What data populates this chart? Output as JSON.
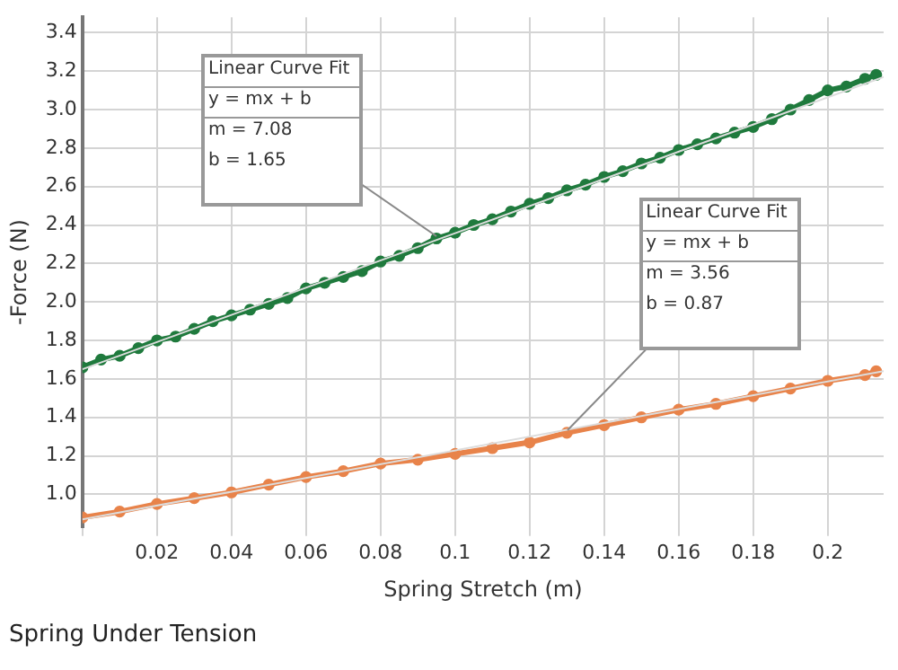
{
  "chart_data": {
    "type": "line",
    "title": "Spring Under Tension",
    "xlabel": "Spring Stretch (m)",
    "ylabel": "-Force (N)",
    "xlim": [
      0,
      0.215
    ],
    "xticks": [
      {
        "value": 0,
        "label": null
      },
      0.02,
      0.04,
      0.06,
      0.08,
      0.1,
      0.12,
      0.14,
      0.16,
      0.18,
      0.2
    ],
    "ylim": [
      0.83,
      3.48
    ],
    "yticks": [
      {
        "value": 1,
        "label": "1.0"
      },
      1.2,
      1.4,
      1.6,
      1.8,
      {
        "value": 2,
        "label": "2.0"
      },
      2.2,
      2.4,
      2.6,
      2.8,
      {
        "value": 3,
        "label": "3.0"
      },
      3.2,
      3.4
    ],
    "grid": true,
    "legend": false,
    "marker": "circle",
    "series": [
      {
        "color": "#1f7a3d",
        "x": [
          0,
          0.005,
          0.01,
          0.015,
          0.02,
          0.025,
          0.03,
          0.035,
          0.04,
          0.045,
          0.05,
          0.055,
          0.06,
          0.065,
          0.07,
          0.075,
          0.08,
          0.085,
          0.09,
          0.095,
          0.1,
          0.105,
          0.11,
          0.115,
          0.12,
          0.125,
          0.13,
          0.135,
          0.14,
          0.145,
          0.15,
          0.155,
          0.16,
          0.165,
          0.17,
          0.175,
          0.18,
          0.185,
          0.19,
          0.195,
          0.2,
          0.205,
          0.21,
          0.213
        ],
        "values": [
          1.66,
          1.7,
          1.72,
          1.76,
          1.8,
          1.82,
          1.86,
          1.9,
          1.93,
          1.96,
          1.99,
          2.02,
          2.07,
          2.1,
          2.13,
          2.16,
          2.21,
          2.24,
          2.28,
          2.33,
          2.36,
          2.4,
          2.43,
          2.47,
          2.51,
          2.54,
          2.58,
          2.61,
          2.65,
          2.68,
          2.72,
          2.75,
          2.79,
          2.82,
          2.85,
          2.88,
          2.91,
          2.95,
          3.0,
          3.05,
          3.1,
          3.12,
          3.16,
          3.18
        ]
      },
      {
        "color": "#e8834a",
        "x": [
          0,
          0.01,
          0.02,
          0.03,
          0.04,
          0.05,
          0.06,
          0.07,
          0.08,
          0.09,
          0.1,
          0.11,
          0.12,
          0.13,
          0.14,
          0.15,
          0.16,
          0.17,
          0.18,
          0.19,
          0.2,
          0.21,
          0.213
        ],
        "values": [
          0.88,
          0.91,
          0.95,
          0.98,
          1.01,
          1.05,
          1.09,
          1.12,
          1.16,
          1.18,
          1.21,
          1.24,
          1.27,
          1.32,
          1.36,
          1.4,
          1.44,
          1.47,
          1.51,
          1.55,
          1.59,
          1.62,
          1.64
        ]
      },
      {
        "type": "line",
        "marker": "none",
        "color": "#dcdcdc",
        "x": [
          0,
          0.215
        ],
        "values": [
          1.65,
          3.17
        ]
      },
      {
        "type": "line",
        "marker": "none",
        "color": "#dcdcdc",
        "x": [
          0,
          0.215
        ],
        "values": [
          0.87,
          1.64
        ]
      }
    ],
    "annotations": [
      {
        "text": "Linear Curve Fit\ny = mx + b\nm = 7.08\nb = 1.65",
        "x": 0.095,
        "y": 2.34
      },
      {
        "text": "Linear Curve Fit\ny = mx + b\nm = 3.56\nb = 0.87",
        "x": 0.13,
        "y": 1.33
      }
    ]
  }
}
